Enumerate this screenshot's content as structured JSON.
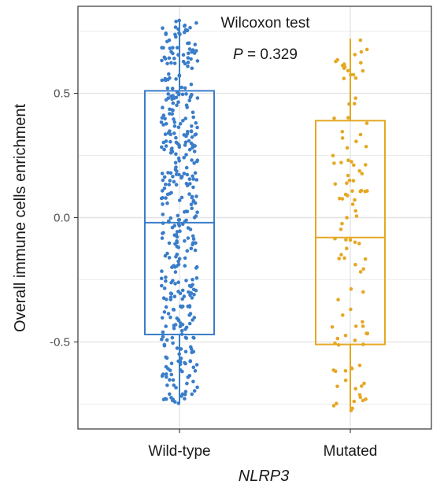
{
  "chart_data": {
    "type": "box",
    "annotation": {
      "title": "Wilcoxon test",
      "p_symbol": "P",
      "p_text": " = 0.329"
    },
    "xlabel": "NLRP3",
    "ylabel": "Overall immune cells enrichment",
    "ylim": [
      -0.85,
      0.85
    ],
    "yticks": [
      -0.5,
      0.0,
      0.5
    ],
    "ytick_labels": [
      "-0.5",
      "0.0",
      "0.5"
    ],
    "grid": true,
    "categories": [
      "Wild-type",
      "Mutated"
    ],
    "series": [
      {
        "name": "Wild-type",
        "color": "#3a7dc9",
        "q1": -0.47,
        "median": -0.02,
        "q3": 0.51,
        "whisker_low": -0.75,
        "whisker_high": 0.8,
        "n_points": 420
      },
      {
        "name": "Mutated",
        "color": "#e5a823",
        "q1": -0.51,
        "median": -0.08,
        "q3": 0.39,
        "whisker_low": -0.78,
        "whisker_high": 0.72,
        "n_points": 110
      }
    ]
  }
}
